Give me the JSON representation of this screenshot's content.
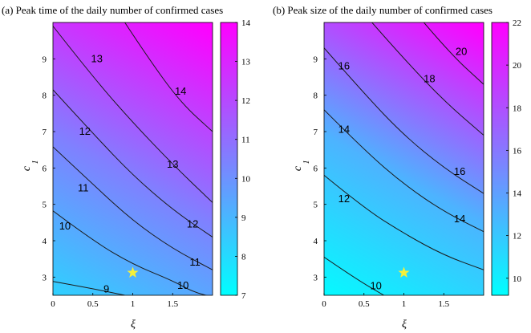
{
  "chart_data": [
    {
      "type": "contour",
      "title": "(a) Peak time of the daily number of confirmed cases",
      "xlabel": "ξ",
      "ylabel_base": "c",
      "ylabel_sub": "1",
      "xlim": [
        0,
        2
      ],
      "ylim": [
        2.5,
        10
      ],
      "x_ticks": [
        0,
        0.5,
        1,
        1.5
      ],
      "x_tick_labels": [
        "0",
        "0.5",
        "1",
        "1.5"
      ],
      "y_ticks": [
        3,
        4,
        5,
        6,
        7,
        8,
        9
      ],
      "y_tick_labels": [
        "3",
        "4",
        "5",
        "6",
        "7",
        "8",
        "9"
      ],
      "colorbar_range": [
        7,
        14
      ],
      "colorbar_ticks": [
        7,
        8,
        9,
        10,
        11,
        12,
        13,
        14
      ],
      "colorbar_tick_labels": [
        "7",
        "8",
        "9",
        "10",
        "11",
        "12",
        "13",
        "14"
      ],
      "contour_lines": [
        {
          "level": "9",
          "points": [
            [
              0,
              2.88
            ],
            [
              0.5,
              2.68
            ],
            [
              0.9,
              2.5
            ]
          ],
          "label_at": [
            0.67,
            2.67
          ]
        },
        {
          "level": "10",
          "points": [
            [
              0,
              4.82
            ],
            [
              0.5,
              4.0
            ],
            [
              1.0,
              3.35
            ],
            [
              1.5,
              2.9
            ],
            [
              1.75,
              2.6
            ],
            [
              2.0,
              2.45
            ]
          ],
          "label_at": [
            1.63,
            2.77
          ]
        },
        {
          "level": "11",
          "points": [
            [
              0,
              6.58
            ],
            [
              0.5,
              5.55
            ],
            [
              1.0,
              4.55
            ],
            [
              1.5,
              3.78
            ],
            [
              2.0,
              3.2
            ]
          ],
          "label_at": [
            1.78,
            3.4
          ]
        },
        {
          "level": "12",
          "points": [
            [
              0,
              8.15
            ],
            [
              0.5,
              6.95
            ],
            [
              1.0,
              5.8
            ],
            [
              1.5,
              4.85
            ],
            [
              2.0,
              4.1
            ]
          ],
          "label_at": [
            1.75,
            4.45
          ]
        },
        {
          "level": "13",
          "points": [
            [
              0,
              9.9
            ],
            [
              0.5,
              8.5
            ],
            [
              1.0,
              7.25
            ],
            [
              1.5,
              6.1
            ],
            [
              2.0,
              5.05
            ]
          ],
          "label_at": [
            1.5,
            6.1
          ]
        },
        {
          "level": "14",
          "points": [
            [
              0.9,
              10.0
            ],
            [
              1.2,
              9.0
            ],
            [
              1.6,
              7.8
            ],
            [
              2.0,
              7.0
            ]
          ],
          "label_at": [
            1.6,
            8.1
          ]
        }
      ],
      "contour_label_positions": [
        [
          0.67,
          2.67
        ],
        [
          1.63,
          2.77
        ],
        [
          1.78,
          3.4
        ],
        [
          1.75,
          4.45
        ],
        [
          1.5,
          6.1
        ],
        [
          1.6,
          8.1
        ],
        [
          0.15,
          4.4
        ],
        [
          0.38,
          5.45
        ],
        [
          0.4,
          7.0
        ],
        [
          0.55,
          9.0
        ]
      ],
      "contour_label_texts": [
        "9",
        "10",
        "11",
        "12",
        "13",
        "14",
        "10",
        "11",
        "12",
        "13"
      ],
      "marker": {
        "x": 1.0,
        "y": 3.12,
        "symbol": "star",
        "color": "#f5f03a"
      }
    },
    {
      "type": "contour",
      "title": "(b) Peak size of the daily number of confirmed cases",
      "xlabel": "ξ",
      "ylabel_base": "c",
      "ylabel_sub": "1",
      "xlim": [
        0,
        2
      ],
      "ylim": [
        2.5,
        10
      ],
      "x_ticks": [
        0,
        0.5,
        1,
        1.5
      ],
      "x_tick_labels": [
        "0",
        "0.5",
        "1",
        "1.5"
      ],
      "y_ticks": [
        3,
        4,
        5,
        6,
        7,
        8,
        9
      ],
      "y_tick_labels": [
        "3",
        "4",
        "5",
        "6",
        "7",
        "8",
        "9"
      ],
      "colorbar_range": [
        9.2,
        22
      ],
      "colorbar_ticks": [
        10,
        12,
        14,
        16,
        18,
        20,
        22
      ],
      "colorbar_tick_labels": [
        "10",
        "12",
        "14",
        "16",
        "18",
        "20",
        "22"
      ],
      "contour_lines": [
        {
          "level": "10",
          "points": [
            [
              0,
              3.55
            ],
            [
              0.4,
              2.95
            ],
            [
              0.75,
              2.5
            ]
          ],
          "label_at": [
            0.65,
            2.75
          ]
        },
        {
          "level": "12",
          "points": [
            [
              0,
              5.8
            ],
            [
              0.5,
              4.9
            ],
            [
              1.0,
              4.2
            ],
            [
              1.5,
              3.6
            ],
            [
              2.0,
              3.2
            ]
          ],
          "label_at": [
            0.25,
            5.15
          ]
        },
        {
          "level": "14",
          "points": [
            [
              0,
              7.6
            ],
            [
              0.5,
              6.5
            ],
            [
              1.0,
              5.55
            ],
            [
              1.5,
              4.8
            ],
            [
              2.0,
              4.25
            ]
          ],
          "label_at": [
            1.7,
            4.6
          ]
        },
        {
          "level": "16",
          "points": [
            [
              0,
              9.3
            ],
            [
              0.5,
              8.05
            ],
            [
              1.0,
              6.9
            ],
            [
              1.5,
              6.0
            ],
            [
              2.0,
              5.3
            ]
          ],
          "label_at": [
            1.7,
            5.9
          ]
        },
        {
          "level": "18",
          "points": [
            [
              0.6,
              10.0
            ],
            [
              1.0,
              9.0
            ],
            [
              1.5,
              7.85
            ],
            [
              2.0,
              6.9
            ]
          ],
          "label_at": [
            1.32,
            8.45
          ]
        },
        {
          "level": "20",
          "points": [
            [
              1.25,
              10.0
            ],
            [
              1.6,
              9.1
            ],
            [
              2.0,
              8.3
            ]
          ],
          "label_at": [
            1.72,
            9.2
          ]
        }
      ],
      "contour_label_positions": [
        [
          0.65,
          2.75
        ],
        [
          0.25,
          5.15
        ],
        [
          1.7,
          4.6
        ],
        [
          0.25,
          7.05
        ],
        [
          1.7,
          5.9
        ],
        [
          0.25,
          8.8
        ],
        [
          1.32,
          8.45
        ],
        [
          1.72,
          9.2
        ]
      ],
      "contour_label_texts": [
        "10",
        "12",
        "14",
        "14",
        "16",
        "16",
        "18",
        "20"
      ],
      "marker": {
        "x": 1.0,
        "y": 3.12,
        "symbol": "star",
        "color": "#f5f03a"
      }
    }
  ],
  "colors": {
    "cool_low": "#00ffff",
    "cool_high": "#ff00ff",
    "line": "#1a1a1a",
    "frame": "#000000"
  }
}
